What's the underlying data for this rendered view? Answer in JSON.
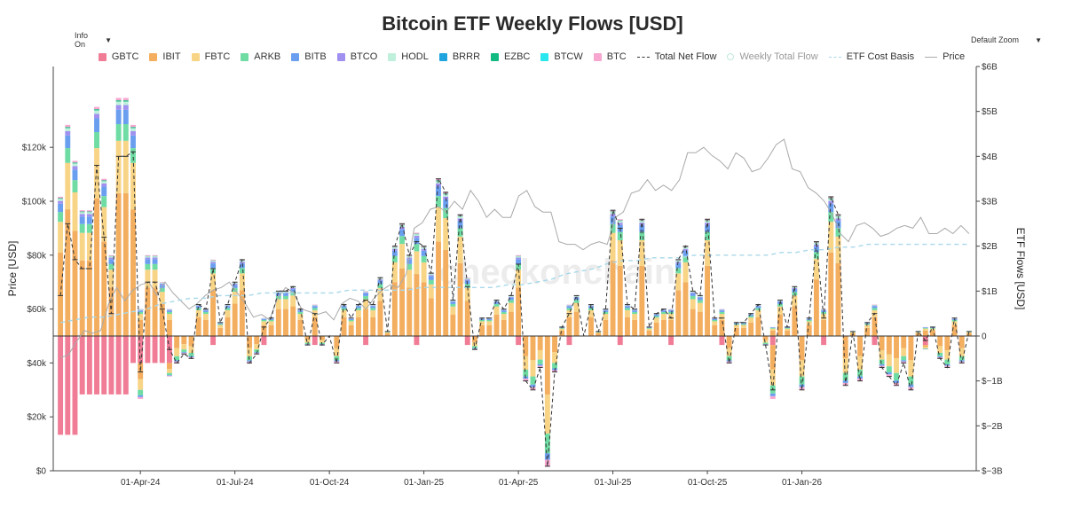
{
  "header": {
    "info_label": "Info On",
    "zoom_label": "Default Zoom"
  },
  "watermark": "checkonchain",
  "chart_data": {
    "type": "bar",
    "title": "Bitcoin ETF Weekly Flows [USD]",
    "ylabel_left": "Price [USD]",
    "ylabel_right": "ETF Flows [USD]",
    "ylim_left": [
      0,
      150000
    ],
    "ylim_right": [
      -3,
      6
    ],
    "left_ticks": [
      {
        "value": 0,
        "label": "$0"
      },
      {
        "value": 20000,
        "label": "$20k"
      },
      {
        "value": 40000,
        "label": "$40k"
      },
      {
        "value": 60000,
        "label": "$60k"
      },
      {
        "value": 80000,
        "label": "$80k"
      },
      {
        "value": 100000,
        "label": "$100k"
      },
      {
        "value": 120000,
        "label": "$120k"
      }
    ],
    "right_ticks": [
      {
        "value": -3,
        "label": "$−3B"
      },
      {
        "value": -2,
        "label": "$−2B"
      },
      {
        "value": -1,
        "label": "$−1B"
      },
      {
        "value": 0,
        "label": "0"
      },
      {
        "value": 1,
        "label": "$1B"
      },
      {
        "value": 2,
        "label": "$2B"
      },
      {
        "value": 3,
        "label": "$3B"
      },
      {
        "value": 4,
        "label": "$4B"
      },
      {
        "value": 5,
        "label": "$5B"
      },
      {
        "value": 6,
        "label": "$6B"
      }
    ],
    "x_ticks": [
      {
        "week": 11,
        "label": "01-Apr-24"
      },
      {
        "week": 24,
        "label": "01-Jul-24"
      },
      {
        "week": 37,
        "label": "01-Oct-24"
      },
      {
        "week": 50,
        "label": "01-Jan-25"
      },
      {
        "week": 63,
        "label": "01-Apr-25"
      },
      {
        "week": 76,
        "label": "01-Jul-25"
      },
      {
        "week": 89,
        "label": "01-Oct-25"
      },
      {
        "week": 102,
        "label": "01-Jan-26"
      }
    ],
    "legend": [
      {
        "name": "GBTC",
        "kind": "bar",
        "color": "#f07c96"
      },
      {
        "name": "IBIT",
        "kind": "bar",
        "color": "#f3ae5f"
      },
      {
        "name": "FBTC",
        "kind": "bar",
        "color": "#f8d486"
      },
      {
        "name": "ARKB",
        "kind": "bar",
        "color": "#6fdca4"
      },
      {
        "name": "BITB",
        "kind": "bar",
        "color": "#6a9ff0"
      },
      {
        "name": "BTCO",
        "kind": "bar",
        "color": "#a090f0"
      },
      {
        "name": "HODL",
        "kind": "bar",
        "color": "#bff0dc"
      },
      {
        "name": "BRRR",
        "kind": "bar",
        "color": "#20a4e0"
      },
      {
        "name": "EZBC",
        "kind": "bar",
        "color": "#12b981"
      },
      {
        "name": "BTCW",
        "kind": "bar",
        "color": "#2ae6ee"
      },
      {
        "name": "BTC",
        "kind": "bar",
        "color": "#f7a6cf"
      },
      {
        "name": "Total Net Flow",
        "kind": "dash",
        "color": "#333333"
      },
      {
        "name": "Weekly Total Flow",
        "kind": "circle",
        "color": "#bfe8dc",
        "dim": true
      },
      {
        "name": "ETF Cost Basis",
        "kind": "dashline",
        "color": "#a8d8ea"
      },
      {
        "name": "Price",
        "kind": "line",
        "color": "#aaaaaa"
      }
    ],
    "weekly_net_flow_B": [
      0.9,
      2.5,
      1.7,
      1.5,
      1.5,
      3.8,
      2.2,
      0.5,
      4.0,
      4.0,
      4.1,
      -0.8,
      1.2,
      1.2,
      0.6,
      -0.3,
      -0.6,
      -0.4,
      -0.5,
      0.7,
      0.6,
      1.5,
      0.3,
      0.7,
      1.2,
      1.7,
      -0.6,
      -0.4,
      0.2,
      0.4,
      1.0,
      1.0,
      1.1,
      0.6,
      -0.2,
      0.5,
      -0.2,
      0.0,
      -0.6,
      0.7,
      0.4,
      0.7,
      0.8,
      0.7,
      1.3,
      0.1,
      2.0,
      2.5,
      1.8,
      2.1,
      2.0,
      1.4,
      3.5,
      3.2,
      0.8,
      2.7,
      1.1,
      -0.3,
      0.4,
      0.4,
      0.8,
      0.6,
      0.9,
      1.6,
      -1.0,
      -1.2,
      -0.7,
      -2.9,
      -0.8,
      0.2,
      0.5,
      0.9,
      0.0,
      0.7,
      0.1,
      0.6,
      2.8,
      2.4,
      0.7,
      0.6,
      2.6,
      0.2,
      0.5,
      0.6,
      0.4,
      1.7,
      2.0,
      1.0,
      0.9,
      2.6,
      0.4,
      0.4,
      -0.6,
      0.3,
      0.3,
      0.5,
      0.7,
      -0.2,
      -1.2,
      0.8,
      0.2,
      1.1,
      -1.2,
      0.4,
      2.1,
      0.4,
      3.1,
      2.7,
      -1.1,
      0.1,
      -1.0,
      0.3,
      0.5,
      -0.7,
      -0.9,
      -1.1,
      -0.6,
      -1.2,
      0.1,
      -0.1,
      0.2,
      -0.5,
      -0.7,
      0.4,
      -0.6,
      0.1
    ],
    "weekly_price_k": [
      42,
      43,
      48,
      52,
      51,
      52,
      62,
      68,
      63,
      67,
      69,
      70,
      65,
      70,
      66,
      63,
      60,
      62,
      65,
      67,
      68,
      70,
      66,
      62,
      57,
      58,
      56,
      64,
      68,
      66,
      60,
      59,
      58,
      59,
      56,
      62,
      64,
      63,
      60,
      64,
      67,
      69,
      68,
      73,
      90,
      92,
      97,
      98,
      96,
      100,
      97,
      104,
      100,
      94,
      97,
      94,
      94,
      102,
      104,
      98,
      96,
      96,
      85,
      84,
      84,
      82,
      84,
      85,
      84,
      94,
      96,
      103,
      104,
      108,
      104,
      106,
      104,
      108,
      118,
      118,
      120,
      117,
      115,
      112,
      118,
      116,
      111,
      112,
      116,
      121,
      123,
      112,
      111,
      105,
      103,
      100,
      95,
      88,
      85,
      91,
      92,
      90,
      87,
      88,
      90,
      91,
      90,
      94,
      88,
      88,
      90,
      88,
      91,
      88
    ],
    "cost_basis_k": [
      55,
      56,
      57,
      57,
      58,
      59,
      60,
      62,
      63,
      64,
      64,
      65,
      65,
      65,
      66,
      66,
      66,
      66,
      66,
      66,
      67,
      67,
      67,
      67,
      67,
      68,
      68,
      68,
      68,
      68,
      68,
      69,
      69,
      70,
      71,
      73,
      74,
      75,
      77,
      78,
      78,
      79,
      79,
      79,
      80,
      80,
      80,
      80,
      80,
      80,
      81,
      81,
      82,
      82,
      83,
      83,
      84,
      84,
      84,
      84,
      84,
      84,
      84,
      84
    ],
    "cost_basis_start_week": 50
  }
}
